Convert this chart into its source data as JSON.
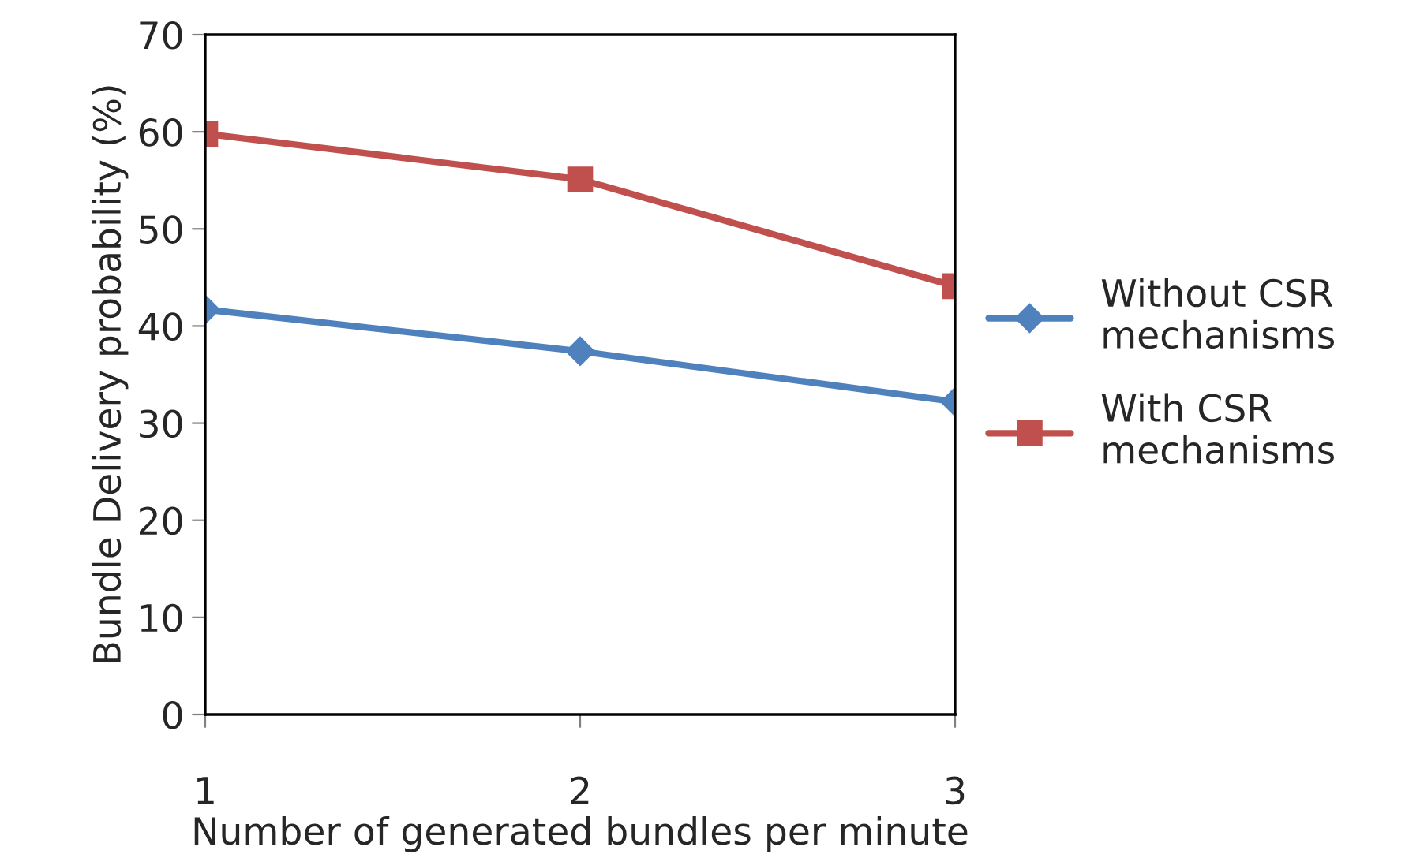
{
  "chart_data": {
    "type": "line",
    "xlabel": "Number of generated bundles per minute",
    "ylabel": "Bundle Delivery probability (%)",
    "x": [
      1,
      2,
      3
    ],
    "xlim": [
      1,
      3
    ],
    "xticks": [
      1,
      2,
      3
    ],
    "ylim": [
      0,
      70
    ],
    "yticks": [
      0,
      10,
      20,
      30,
      40,
      50,
      60,
      70
    ],
    "grid": false,
    "legend": "right",
    "series": [
      {
        "name": "Without CSR\nmechanisms",
        "color": "#4f81bd",
        "marker": "diamond",
        "values": [
          41.7,
          37.4,
          32.2
        ]
      },
      {
        "name": "With CSR\nmechanisms",
        "color": "#c0504d",
        "marker": "square",
        "values": [
          59.8,
          55.1,
          44.1
        ]
      }
    ]
  }
}
